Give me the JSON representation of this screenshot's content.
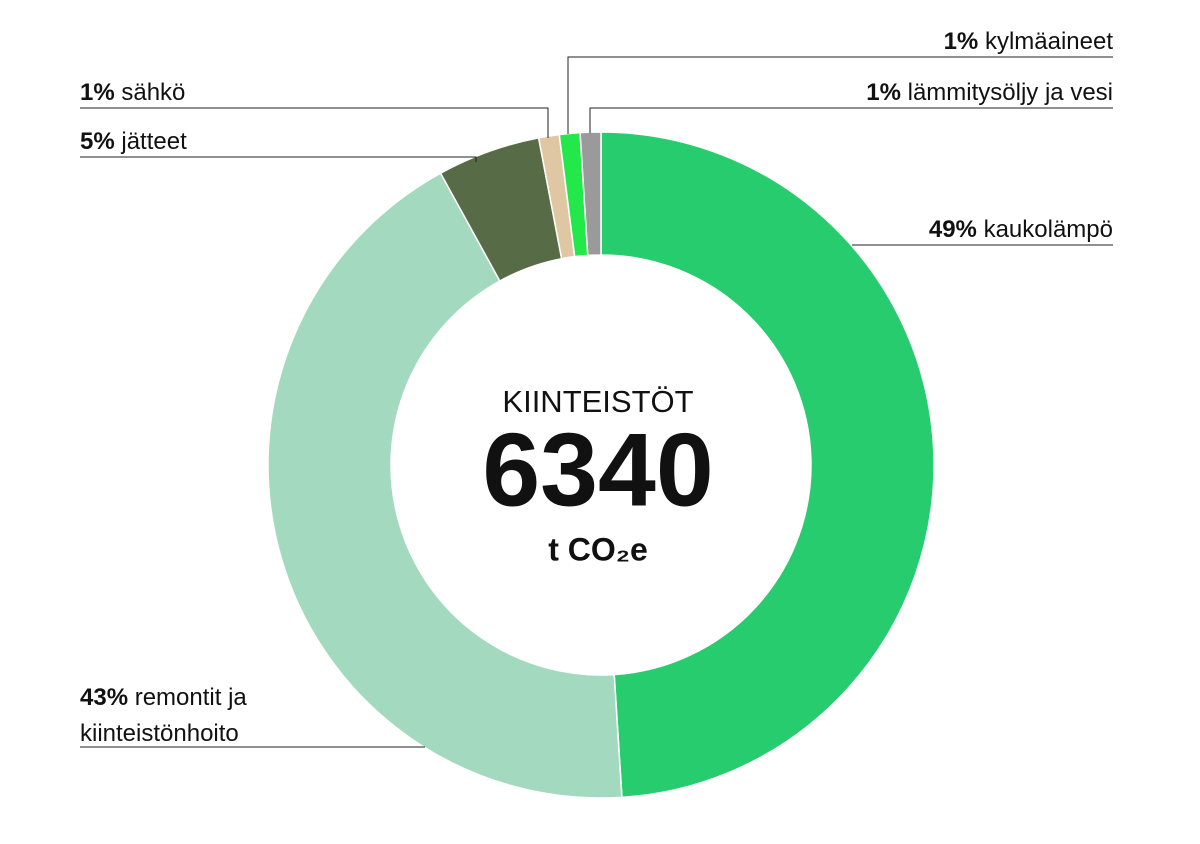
{
  "chart_data": {
    "type": "donut",
    "center_title": "KIINTEISTÖT",
    "center_value": "6340",
    "center_unit": "t CO₂e",
    "categories": [
      "kaukolämpö",
      "remontit ja kiinteistönhoito",
      "jätteet",
      "sähkö",
      "kylmäaineet",
      "lämmitysöljy ja vesi"
    ],
    "values": [
      49,
      43,
      5,
      1,
      1,
      1
    ],
    "value_labels": [
      "49%",
      "43%",
      "5%",
      "1%",
      "1%",
      "1%"
    ],
    "colors": [
      "#27cc6f",
      "#a3d9bf",
      "#586b47",
      "#dfc7a3",
      "#22e84a",
      "#9a9a9a"
    ]
  }
}
